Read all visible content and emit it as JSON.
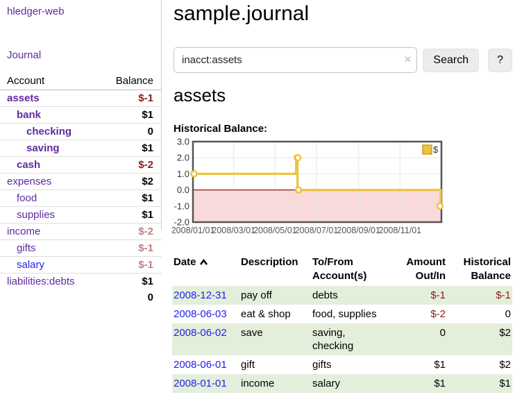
{
  "app": {
    "brand": "hledger-web",
    "nav_journal": "Journal"
  },
  "sidebar": {
    "columns": {
      "account": "Account",
      "balance": "Balance"
    },
    "accounts": [
      {
        "name": "assets",
        "indent": 0,
        "bold": true,
        "link": "purple",
        "balance": "$-1",
        "balance_style": "neg-strong"
      },
      {
        "name": "bank",
        "indent": 1,
        "bold": true,
        "link": "purple",
        "balance": "$1",
        "balance_style": "pos"
      },
      {
        "name": "checking",
        "indent": 2,
        "bold": true,
        "link": "purple",
        "balance": "0",
        "balance_style": "pos"
      },
      {
        "name": "saving",
        "indent": 2,
        "bold": true,
        "link": "purple",
        "balance": "$1",
        "balance_style": "pos"
      },
      {
        "name": "cash",
        "indent": 1,
        "bold": true,
        "link": "purple",
        "balance": "$-2",
        "balance_style": "neg-strong"
      },
      {
        "name": "expenses",
        "indent": 0,
        "bold": false,
        "link": "purple",
        "balance": "$2",
        "balance_style": "pos"
      },
      {
        "name": "food",
        "indent": 1,
        "bold": false,
        "link": "purple",
        "balance": "$1",
        "balance_style": "pos"
      },
      {
        "name": "supplies",
        "indent": 1,
        "bold": false,
        "link": "purple",
        "balance": "$1",
        "balance_style": "pos"
      },
      {
        "name": "income",
        "indent": 0,
        "bold": false,
        "link": "purple",
        "balance": "$-2",
        "balance_style": "neg-soft"
      },
      {
        "name": "gifts",
        "indent": 1,
        "bold": false,
        "link": "purple",
        "balance": "$-1",
        "balance_style": "neg-soft"
      },
      {
        "name": "salary",
        "indent": 1,
        "bold": false,
        "link": "blue",
        "balance": "$-1",
        "balance_style": "neg-soft"
      },
      {
        "name": "liabilities:debts",
        "indent": 0,
        "bold": false,
        "link": "purple",
        "balance": "$1",
        "balance_style": "pos"
      }
    ],
    "total": "0"
  },
  "header": {
    "title": "sample.journal"
  },
  "search": {
    "value": "inacct:assets",
    "clear_icon": "×",
    "search_button": "Search",
    "help_button": "?"
  },
  "main": {
    "account_heading": "assets",
    "chart_label": "Historical Balance:"
  },
  "chart_data": {
    "type": "line",
    "title": "Historical Balance",
    "step": true,
    "series": [
      {
        "name": "$",
        "points": [
          [
            "2008-01-01",
            1
          ],
          [
            "2008-06-01",
            2
          ],
          [
            "2008-06-02",
            2
          ],
          [
            "2008-06-03",
            0
          ],
          [
            "2008-12-31",
            -1
          ]
        ]
      }
    ],
    "x_start": "2008-01-01",
    "x_days": 366,
    "ylim": [
      -2,
      3
    ],
    "yticks": [
      "3.0",
      "2.0",
      "1.0",
      "0.0",
      "-1.0",
      "-2.0"
    ],
    "ytick_values": [
      3,
      2,
      1,
      0,
      -1,
      -2
    ],
    "xticks": [
      "2008/01/01",
      "2008/03/01",
      "2008/05/01",
      "2008/07/01",
      "2008/09/01",
      "2008/11/01"
    ],
    "legend": {
      "label": "$",
      "position": "top-right"
    },
    "zero_line": true,
    "negative_region_fill": true
  },
  "register": {
    "headers": {
      "date": "Date",
      "description": "Description",
      "accounts": "To/From Account(s)",
      "amount": "Amount Out/In",
      "balance": "Historical Balance"
    },
    "rows": [
      {
        "date": "2008-12-31",
        "description": "pay off",
        "accounts": "debts",
        "amount": "$-1",
        "amount_neg": true,
        "balance": "$-1",
        "balance_neg": true,
        "shade": true
      },
      {
        "date": "2008-06-03",
        "description": "eat & shop",
        "accounts": "food, supplies",
        "amount": "$-2",
        "amount_neg": true,
        "balance": "0",
        "balance_neg": false,
        "shade": false
      },
      {
        "date": "2008-06-02",
        "description": "save",
        "accounts": "saving, checking",
        "amount": "0",
        "amount_neg": false,
        "balance": "$2",
        "balance_neg": false,
        "shade": true
      },
      {
        "date": "2008-06-01",
        "description": "gift",
        "accounts": "gifts",
        "amount": "$1",
        "amount_neg": false,
        "balance": "$2",
        "balance_neg": false,
        "shade": false
      },
      {
        "date": "2008-01-01",
        "description": "income",
        "accounts": "salary",
        "amount": "$1",
        "amount_neg": false,
        "balance": "$1",
        "balance_neg": false,
        "shade": true
      }
    ]
  },
  "colors": {
    "link_purple": "#5f2aa0",
    "link_blue": "#2222ee",
    "negative_strong": "#8b1a1a",
    "negative_soft": "#c07f7f",
    "row_shade_green": "#e4efdb",
    "chart_line_yellow": "#edc240",
    "chart_negative_fill": "#f9d9d9",
    "chart_zero_line": "#8b1a1a",
    "chart_grid": "#e6e6e6",
    "chart_border": "#545454"
  }
}
